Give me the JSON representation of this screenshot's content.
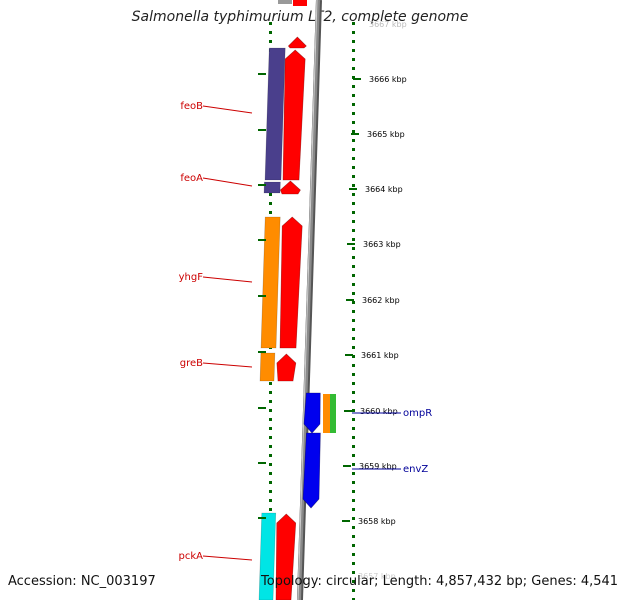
{
  "header": {
    "title": "Salmonella typhimurium LT2, complete genome"
  },
  "footer": {
    "accession": "Accession: NC_003197",
    "summary": "Topology: circular; Length: 4,857,432 bp; Genes: 4,541"
  },
  "scale": {
    "unit": "kbp",
    "ticks": [
      "3666 kbp",
      "3665 kbp",
      "3664 kbp",
      "3663 kbp",
      "3662 kbp",
      "3661 kbp",
      "3660 kbp",
      "3659 kbp",
      "3658 kbp"
    ],
    "partial_top_tick": "3667 kbp",
    "partial_bottom_tick": "3657 kbp"
  },
  "genes": {
    "reverse_strand": [
      {
        "name": "feoB",
        "color": "#4a3f8c"
      },
      {
        "name": "feoA",
        "color": "#4a3f8c"
      },
      {
        "name": "yhgF",
        "color": "#ff8c00"
      },
      {
        "name": "greB",
        "color": "#ff8c00"
      },
      {
        "name": "pckA",
        "color": "#00e5e5"
      }
    ],
    "forward_strand": [
      {
        "name": "ompR",
        "color": "#0000ee"
      },
      {
        "name": "envZ",
        "color": "#0000ee"
      }
    ]
  },
  "colors": {
    "backbone": "#8a8a8a",
    "cds": "#ff0000",
    "left_label": "#cc0000",
    "right_label": "#000099",
    "tick": "#006600",
    "cog_orange": "#ff8c00",
    "cog_green": "#33bb33"
  }
}
